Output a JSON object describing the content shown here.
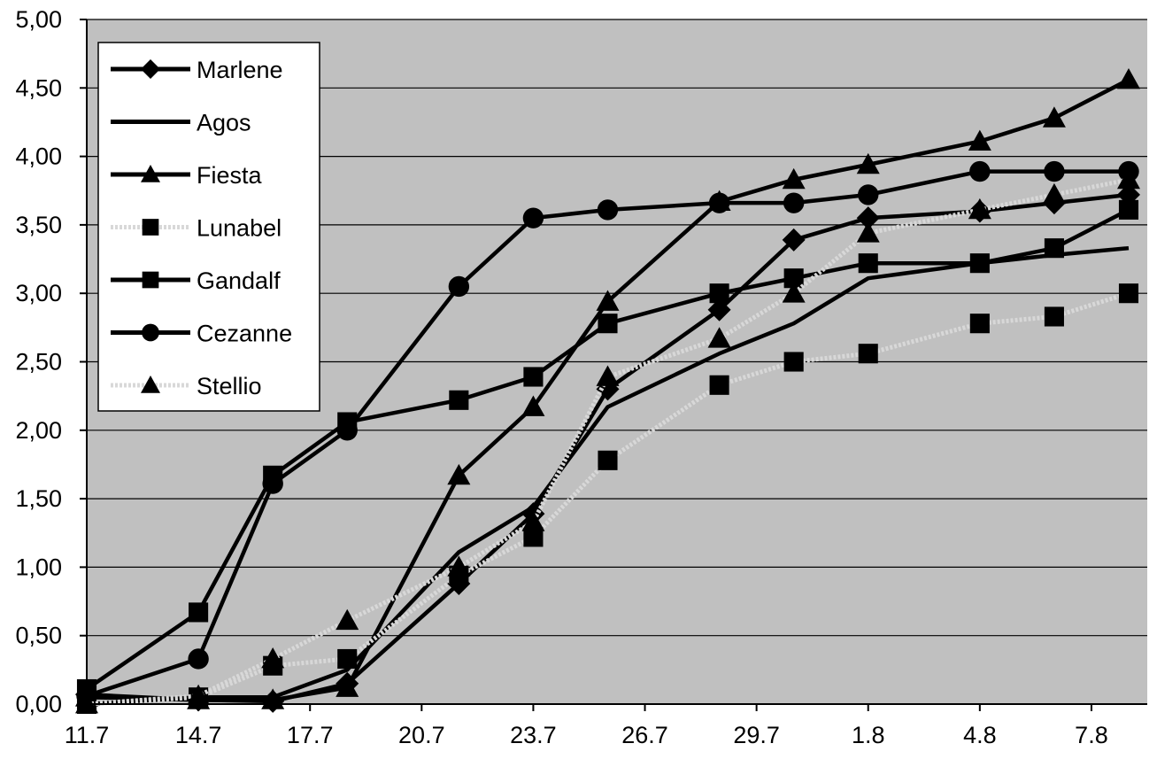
{
  "chart_data": {
    "type": "line",
    "title": "",
    "xlabel": "",
    "ylabel": "",
    "x_ticks": [
      "11.7",
      "14.7",
      "17.7",
      "20.7",
      "23.7",
      "26.7",
      "29.7",
      "1.8",
      "4.8",
      "7.8"
    ],
    "x_tick_days": [
      0,
      3,
      6,
      9,
      12,
      15,
      18,
      21,
      24,
      27
    ],
    "y_ticks": [
      "0,00",
      "0,50",
      "1,00",
      "1,50",
      "2,00",
      "2,50",
      "3,00",
      "3,50",
      "4,00",
      "4,50",
      "5,00"
    ],
    "ylim": [
      0,
      5
    ],
    "plot_background": "#c0c0c0",
    "gridlines": "horizontal",
    "legend_position": "top-left",
    "series": [
      {
        "name": "Marlene",
        "marker": "diamond",
        "line_color": "#000000",
        "line_style": "solid",
        "points": [
          [
            "11.7",
            0.07
          ],
          [
            "14.7",
            0.03
          ],
          [
            "16.7",
            0.02
          ],
          [
            "18.7",
            0.15
          ],
          [
            "21.7",
            0.88
          ],
          [
            "23.7",
            1.39
          ],
          [
            "25.7",
            2.3
          ],
          [
            "28.7",
            2.88
          ],
          [
            "30.7",
            3.39
          ],
          [
            "1.8",
            3.55
          ],
          [
            "4.8",
            3.6
          ],
          [
            "6.8",
            3.66
          ],
          [
            "8.8",
            3.72
          ]
        ]
      },
      {
        "name": "Agos",
        "marker": "none",
        "line_color": "#000000",
        "line_style": "solid",
        "points": [
          [
            "11.7",
            0.0
          ],
          [
            "14.7",
            0.05
          ],
          [
            "16.7",
            0.05
          ],
          [
            "18.7",
            0.25
          ],
          [
            "21.7",
            1.11
          ],
          [
            "23.7",
            1.44
          ],
          [
            "25.7",
            2.17
          ],
          [
            "28.7",
            2.56
          ],
          [
            "30.7",
            2.78
          ],
          [
            "1.8",
            3.11
          ],
          [
            "4.8",
            3.22
          ],
          [
            "6.8",
            3.28
          ],
          [
            "8.8",
            3.33
          ]
        ]
      },
      {
        "name": "Fiesta",
        "marker": "triangle",
        "line_color": "#000000",
        "line_style": "solid",
        "points": [
          [
            "11.7",
            0.05
          ],
          [
            "14.7",
            0.03
          ],
          [
            "16.7",
            0.03
          ],
          [
            "18.7",
            0.12
          ],
          [
            "21.7",
            1.67
          ],
          [
            "23.7",
            2.17
          ],
          [
            "25.7",
            2.94
          ],
          [
            "28.7",
            3.67
          ],
          [
            "30.7",
            3.83
          ],
          [
            "1.8",
            3.94
          ],
          [
            "4.8",
            4.11
          ],
          [
            "6.8",
            4.28
          ],
          [
            "8.8",
            4.56
          ]
        ]
      },
      {
        "name": "Lunabel",
        "marker": "square",
        "line_color": "#d8d8d8",
        "line_style": "dotted",
        "points": [
          [
            "11.7",
            0.0
          ],
          [
            "14.7",
            0.05
          ],
          [
            "16.7",
            0.28
          ],
          [
            "18.7",
            0.33
          ],
          [
            "21.7",
            0.94
          ],
          [
            "23.7",
            1.22
          ],
          [
            "25.7",
            1.78
          ],
          [
            "28.7",
            2.33
          ],
          [
            "30.7",
            2.5
          ],
          [
            "1.8",
            2.56
          ],
          [
            "4.8",
            2.78
          ],
          [
            "6.8",
            2.83
          ],
          [
            "8.8",
            3.0
          ]
        ]
      },
      {
        "name": "Gandalf",
        "marker": "square",
        "line_color": "#000000",
        "line_style": "solid",
        "points": [
          [
            "11.7",
            0.11
          ],
          [
            "14.7",
            0.67
          ],
          [
            "16.7",
            1.67
          ],
          [
            "18.7",
            2.06
          ],
          [
            "21.7",
            2.22
          ],
          [
            "23.7",
            2.39
          ],
          [
            "25.7",
            2.78
          ],
          [
            "28.7",
            3.0
          ],
          [
            "30.7",
            3.11
          ],
          [
            "1.8",
            3.22
          ],
          [
            "4.8",
            3.22
          ],
          [
            "6.8",
            3.33
          ],
          [
            "8.8",
            3.61
          ]
        ]
      },
      {
        "name": "Cezanne",
        "marker": "circle",
        "line_color": "#000000",
        "line_style": "solid",
        "points": [
          [
            "11.7",
            0.06
          ],
          [
            "14.7",
            0.33
          ],
          [
            "16.7",
            1.61
          ],
          [
            "18.7",
            2.0
          ],
          [
            "21.7",
            3.05
          ],
          [
            "23.7",
            3.55
          ],
          [
            "25.7",
            3.61
          ],
          [
            "28.7",
            3.66
          ],
          [
            "30.7",
            3.66
          ],
          [
            "1.8",
            3.72
          ],
          [
            "4.8",
            3.89
          ],
          [
            "6.8",
            3.89
          ],
          [
            "8.8",
            3.89
          ]
        ]
      },
      {
        "name": "Stellio",
        "marker": "triangle",
        "line_color": "#d8d8d8",
        "line_style": "dotted",
        "points": [
          [
            "11.7",
            0.0
          ],
          [
            "14.7",
            0.06
          ],
          [
            "16.7",
            0.33
          ],
          [
            "18.7",
            0.61
          ],
          [
            "21.7",
            1.0
          ],
          [
            "23.7",
            1.33
          ],
          [
            "25.7",
            2.39
          ],
          [
            "28.7",
            2.67
          ],
          [
            "30.7",
            3.0
          ],
          [
            "1.8",
            3.44
          ],
          [
            "4.8",
            3.61
          ],
          [
            "6.8",
            3.72
          ],
          [
            "8.8",
            3.83
          ]
        ]
      }
    ]
  }
}
